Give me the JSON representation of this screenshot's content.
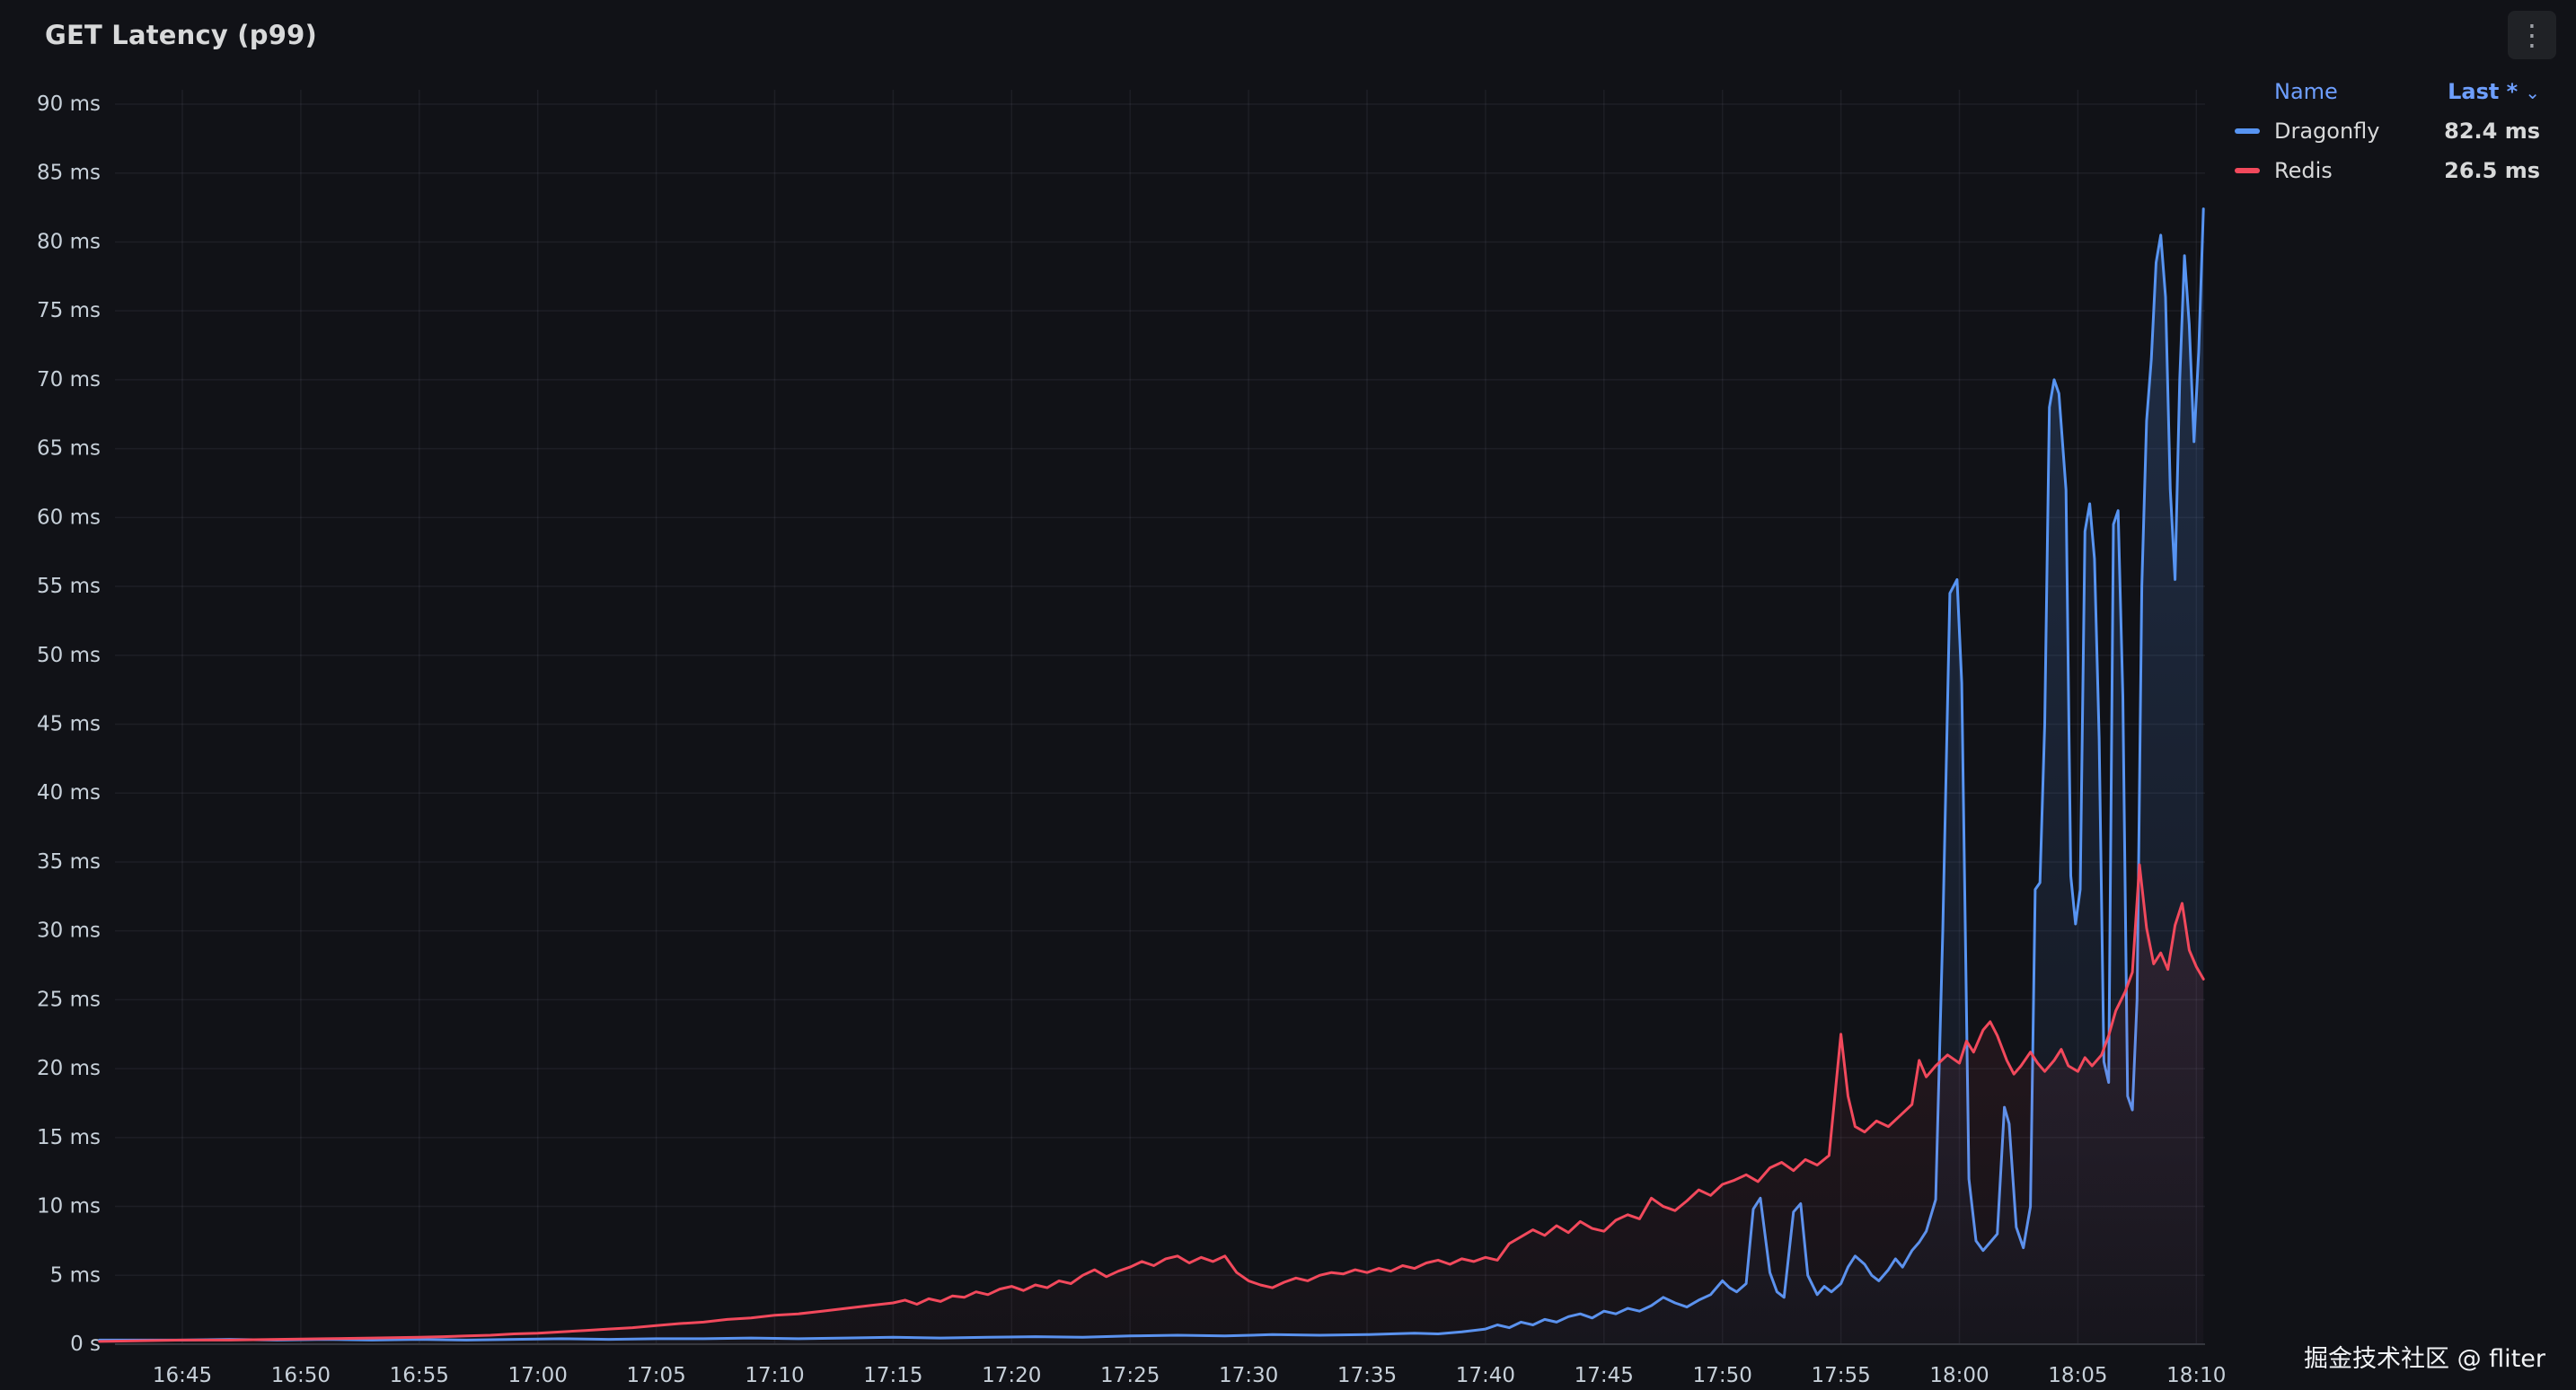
{
  "panel": {
    "title": "GET Latency (p99)"
  },
  "icons": {
    "panel_menu": "⋮",
    "sort_caret": "⌄"
  },
  "legend": {
    "name_header": "Name",
    "last_header": "Last *"
  },
  "watermark": "掘金技术社区 @ fliter",
  "colors": {
    "background": "#111217",
    "grid": "rgba(204,204,220,0.07)",
    "axis_line": "#34373d",
    "axis_text": "#c7d0d9",
    "title_text": "#d8d9da",
    "legend_header": "#6e9fff",
    "dragonfly": "#5794F2",
    "redis": "#F2495C"
  },
  "chart_data": {
    "type": "line",
    "title": "GET Latency (p99)",
    "grid": true,
    "legend_position": "top-right",
    "x_axis": {
      "unit": "time",
      "tick_interval_minutes": 5,
      "tick_labels": [
        "16:45",
        "16:50",
        "16:55",
        "17:00",
        "17:05",
        "17:10",
        "17:15",
        "17:20",
        "17:25",
        "17:30",
        "17:35",
        "17:40",
        "17:45",
        "17:50",
        "17:55",
        "18:00",
        "18:05",
        "18:10"
      ],
      "min_offset_minutes": -3.5,
      "max_offset_minutes": 85.3
    },
    "y_axis": {
      "unit": "ms",
      "min": 0,
      "max": 90,
      "step": 5,
      "tick_labels": [
        "0 s",
        "5 ms",
        "10 ms",
        "15 ms",
        "20 ms",
        "25 ms",
        "30 ms",
        "35 ms",
        "40 ms",
        "45 ms",
        "50 ms",
        "55 ms",
        "60 ms",
        "65 ms",
        "70 ms",
        "75 ms",
        "80 ms",
        "85 ms",
        "90 ms"
      ]
    },
    "series": [
      {
        "name": "Dragonfly",
        "color": "#5794F2",
        "last": "82.4 ms",
        "points": [
          [
            -3.5,
            0.3
          ],
          [
            -2,
            0.3
          ],
          [
            0,
            0.3
          ],
          [
            2,
            0.35
          ],
          [
            4,
            0.3
          ],
          [
            6,
            0.35
          ],
          [
            8,
            0.3
          ],
          [
            10,
            0.35
          ],
          [
            12,
            0.3
          ],
          [
            14,
            0.35
          ],
          [
            16,
            0.4
          ],
          [
            18,
            0.35
          ],
          [
            20,
            0.4
          ],
          [
            22,
            0.4
          ],
          [
            24,
            0.45
          ],
          [
            26,
            0.4
          ],
          [
            28,
            0.45
          ],
          [
            30,
            0.5
          ],
          [
            32,
            0.45
          ],
          [
            34,
            0.5
          ],
          [
            36,
            0.55
          ],
          [
            38,
            0.5
          ],
          [
            40,
            0.6
          ],
          [
            42,
            0.65
          ],
          [
            44,
            0.6
          ],
          [
            46,
            0.7
          ],
          [
            48,
            0.65
          ],
          [
            50,
            0.7
          ],
          [
            51,
            0.75
          ],
          [
            52,
            0.8
          ],
          [
            53,
            0.75
          ],
          [
            54,
            0.9
          ],
          [
            55,
            1.1
          ],
          [
            55.5,
            1.4
          ],
          [
            56,
            1.2
          ],
          [
            56.5,
            1.6
          ],
          [
            57,
            1.4
          ],
          [
            57.5,
            1.8
          ],
          [
            58,
            1.6
          ],
          [
            58.5,
            2.0
          ],
          [
            59,
            2.2
          ],
          [
            59.5,
            1.9
          ],
          [
            60,
            2.4
          ],
          [
            60.5,
            2.2
          ],
          [
            61,
            2.6
          ],
          [
            61.5,
            2.4
          ],
          [
            62,
            2.8
          ],
          [
            62.5,
            3.4
          ],
          [
            63,
            3.0
          ],
          [
            63.5,
            2.7
          ],
          [
            64,
            3.2
          ],
          [
            64.5,
            3.6
          ],
          [
            65,
            4.6
          ],
          [
            65.3,
            4.1
          ],
          [
            65.6,
            3.8
          ],
          [
            66,
            4.4
          ],
          [
            66.3,
            9.8
          ],
          [
            66.6,
            10.6
          ],
          [
            67,
            5.2
          ],
          [
            67.3,
            3.8
          ],
          [
            67.6,
            3.4
          ],
          [
            68,
            9.6
          ],
          [
            68.3,
            10.2
          ],
          [
            68.6,
            5.0
          ],
          [
            69,
            3.6
          ],
          [
            69.3,
            4.2
          ],
          [
            69.6,
            3.8
          ],
          [
            70,
            4.4
          ],
          [
            70.3,
            5.6
          ],
          [
            70.6,
            6.4
          ],
          [
            71,
            5.8
          ],
          [
            71.3,
            5.0
          ],
          [
            71.6,
            4.6
          ],
          [
            72,
            5.4
          ],
          [
            72.3,
            6.2
          ],
          [
            72.6,
            5.6
          ],
          [
            73,
            6.8
          ],
          [
            73.3,
            7.4
          ],
          [
            73.6,
            8.2
          ],
          [
            74,
            10.5
          ],
          [
            74.3,
            30.0
          ],
          [
            74.6,
            54.5
          ],
          [
            74.9,
            55.5
          ],
          [
            75.1,
            48.0
          ],
          [
            75.4,
            12.0
          ],
          [
            75.7,
            7.5
          ],
          [
            76,
            6.8
          ],
          [
            76.3,
            7.4
          ],
          [
            76.6,
            8.0
          ],
          [
            76.9,
            17.2
          ],
          [
            77.1,
            16.0
          ],
          [
            77.4,
            8.5
          ],
          [
            77.7,
            7.0
          ],
          [
            78,
            10.0
          ],
          [
            78.2,
            33.0
          ],
          [
            78.4,
            33.5
          ],
          [
            78.6,
            45.0
          ],
          [
            78.8,
            68.0
          ],
          [
            79,
            70.0
          ],
          [
            79.2,
            69.0
          ],
          [
            79.5,
            62.0
          ],
          [
            79.7,
            34.0
          ],
          [
            79.9,
            30.5
          ],
          [
            80.1,
            33.0
          ],
          [
            80.3,
            59.0
          ],
          [
            80.5,
            61.0
          ],
          [
            80.7,
            57.0
          ],
          [
            80.9,
            44.0
          ],
          [
            81.1,
            20.5
          ],
          [
            81.3,
            19.0
          ],
          [
            81.5,
            59.5
          ],
          [
            81.7,
            60.5
          ],
          [
            81.9,
            47.0
          ],
          [
            82.1,
            18.0
          ],
          [
            82.3,
            17.0
          ],
          [
            82.5,
            25.0
          ],
          [
            82.7,
            55.0
          ],
          [
            82.9,
            67.0
          ],
          [
            83.1,
            71.5
          ],
          [
            83.3,
            78.5
          ],
          [
            83.5,
            80.5
          ],
          [
            83.7,
            76.0
          ],
          [
            83.9,
            62.0
          ],
          [
            84.1,
            55.5
          ],
          [
            84.3,
            70.0
          ],
          [
            84.5,
            79.0
          ],
          [
            84.7,
            74.0
          ],
          [
            84.9,
            65.5
          ],
          [
            85.1,
            72.0
          ],
          [
            85.3,
            82.4
          ]
        ]
      },
      {
        "name": "Redis",
        "color": "#F2495C",
        "last": "26.5 ms",
        "points": [
          [
            -3.5,
            0.2
          ],
          [
            -2,
            0.25
          ],
          [
            0,
            0.3
          ],
          [
            2,
            0.3
          ],
          [
            4,
            0.35
          ],
          [
            6,
            0.4
          ],
          [
            8,
            0.45
          ],
          [
            10,
            0.5
          ],
          [
            11,
            0.55
          ],
          [
            12,
            0.6
          ],
          [
            13,
            0.65
          ],
          [
            14,
            0.75
          ],
          [
            15,
            0.8
          ],
          [
            16,
            0.9
          ],
          [
            17,
            1.0
          ],
          [
            18,
            1.1
          ],
          [
            19,
            1.2
          ],
          [
            20,
            1.35
          ],
          [
            21,
            1.5
          ],
          [
            22,
            1.6
          ],
          [
            23,
            1.8
          ],
          [
            24,
            1.9
          ],
          [
            25,
            2.1
          ],
          [
            26,
            2.2
          ],
          [
            27,
            2.4
          ],
          [
            28,
            2.6
          ],
          [
            29,
            2.8
          ],
          [
            30,
            3.0
          ],
          [
            30.5,
            3.2
          ],
          [
            31,
            2.9
          ],
          [
            31.5,
            3.3
          ],
          [
            32,
            3.1
          ],
          [
            32.5,
            3.5
          ],
          [
            33,
            3.4
          ],
          [
            33.5,
            3.8
          ],
          [
            34,
            3.6
          ],
          [
            34.5,
            4.0
          ],
          [
            35,
            4.2
          ],
          [
            35.5,
            3.9
          ],
          [
            36,
            4.3
          ],
          [
            36.5,
            4.1
          ],
          [
            37,
            4.6
          ],
          [
            37.5,
            4.4
          ],
          [
            38,
            5.0
          ],
          [
            38.5,
            5.4
          ],
          [
            39,
            4.9
          ],
          [
            39.5,
            5.3
          ],
          [
            40,
            5.6
          ],
          [
            40.5,
            6.0
          ],
          [
            41,
            5.7
          ],
          [
            41.5,
            6.2
          ],
          [
            42,
            6.4
          ],
          [
            42.5,
            5.9
          ],
          [
            43,
            6.3
          ],
          [
            43.5,
            6.0
          ],
          [
            44,
            6.4
          ],
          [
            44.5,
            5.2
          ],
          [
            45,
            4.6
          ],
          [
            45.5,
            4.3
          ],
          [
            46,
            4.1
          ],
          [
            46.5,
            4.5
          ],
          [
            47,
            4.8
          ],
          [
            47.5,
            4.6
          ],
          [
            48,
            5.0
          ],
          [
            48.5,
            5.2
          ],
          [
            49,
            5.1
          ],
          [
            49.5,
            5.4
          ],
          [
            50,
            5.2
          ],
          [
            50.5,
            5.5
          ],
          [
            51,
            5.3
          ],
          [
            51.5,
            5.7
          ],
          [
            52,
            5.5
          ],
          [
            52.5,
            5.9
          ],
          [
            53,
            6.1
          ],
          [
            53.5,
            5.8
          ],
          [
            54,
            6.2
          ],
          [
            54.5,
            6.0
          ],
          [
            55,
            6.3
          ],
          [
            55.5,
            6.1
          ],
          [
            56,
            7.3
          ],
          [
            56.5,
            7.8
          ],
          [
            57,
            8.3
          ],
          [
            57.5,
            7.9
          ],
          [
            58,
            8.6
          ],
          [
            58.5,
            8.1
          ],
          [
            59,
            8.9
          ],
          [
            59.5,
            8.4
          ],
          [
            60,
            8.2
          ],
          [
            60.5,
            9.0
          ],
          [
            61,
            9.4
          ],
          [
            61.5,
            9.1
          ],
          [
            62,
            10.6
          ],
          [
            62.5,
            10.0
          ],
          [
            63,
            9.7
          ],
          [
            63.5,
            10.4
          ],
          [
            64,
            11.2
          ],
          [
            64.5,
            10.8
          ],
          [
            65,
            11.6
          ],
          [
            65.5,
            11.9
          ],
          [
            66,
            12.3
          ],
          [
            66.5,
            11.8
          ],
          [
            67,
            12.8
          ],
          [
            67.5,
            13.2
          ],
          [
            68,
            12.6
          ],
          [
            68.5,
            13.4
          ],
          [
            69,
            13.0
          ],
          [
            69.5,
            13.7
          ],
          [
            70,
            22.5
          ],
          [
            70.3,
            18.0
          ],
          [
            70.6,
            15.8
          ],
          [
            71,
            15.4
          ],
          [
            71.5,
            16.2
          ],
          [
            72,
            15.8
          ],
          [
            72.5,
            16.6
          ],
          [
            73,
            17.4
          ],
          [
            73.3,
            20.6
          ],
          [
            73.6,
            19.4
          ],
          [
            74,
            20.2
          ],
          [
            74.5,
            21.0
          ],
          [
            75,
            20.4
          ],
          [
            75.3,
            22.0
          ],
          [
            75.6,
            21.2
          ],
          [
            76,
            22.8
          ],
          [
            76.3,
            23.4
          ],
          [
            76.6,
            22.4
          ],
          [
            77,
            20.6
          ],
          [
            77.3,
            19.6
          ],
          [
            77.6,
            20.2
          ],
          [
            78,
            21.2
          ],
          [
            78.3,
            20.4
          ],
          [
            78.6,
            19.8
          ],
          [
            79,
            20.6
          ],
          [
            79.3,
            21.4
          ],
          [
            79.6,
            20.2
          ],
          [
            80,
            19.8
          ],
          [
            80.3,
            20.8
          ],
          [
            80.6,
            20.2
          ],
          [
            81,
            21.0
          ],
          [
            81.3,
            22.4
          ],
          [
            81.6,
            24.2
          ],
          [
            82,
            25.6
          ],
          [
            82.3,
            27.0
          ],
          [
            82.6,
            34.8
          ],
          [
            82.9,
            30.2
          ],
          [
            83.2,
            27.6
          ],
          [
            83.5,
            28.4
          ],
          [
            83.8,
            27.2
          ],
          [
            84.1,
            30.4
          ],
          [
            84.4,
            32.0
          ],
          [
            84.7,
            28.6
          ],
          [
            85,
            27.4
          ],
          [
            85.3,
            26.5
          ]
        ]
      }
    ]
  }
}
